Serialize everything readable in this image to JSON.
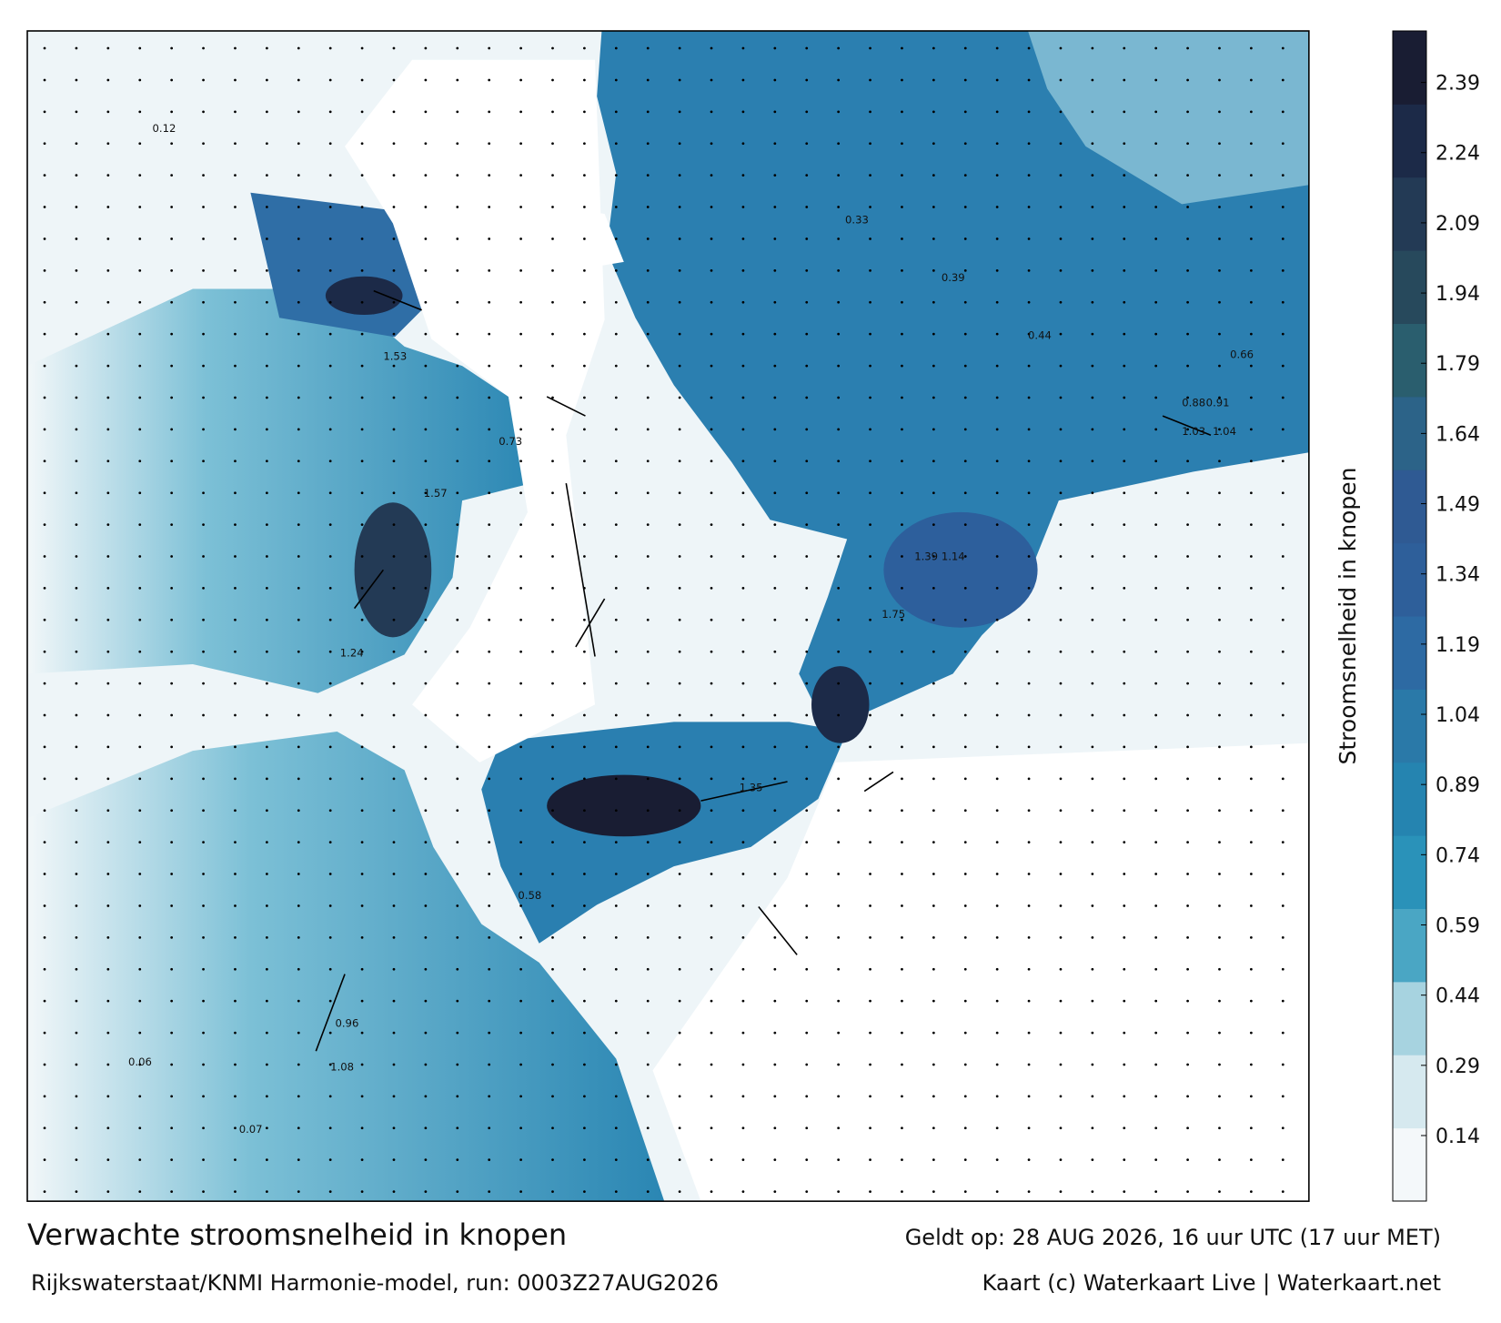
{
  "title": "Verwachte stroomsnelheid in knopen",
  "subtitle": "Rijkswaterstaat/KNMI Harmonie-model, run: 0003Z27AUG2026",
  "valid_time": "Geldt op: 28 AUG 2026, 16 uur UTC (17 uur MET)",
  "credit": "Kaart (c) Waterkaart Live | Waterkaart.net",
  "colorbar": {
    "label": "Stroomsnelheid in knopen",
    "range": [
      0,
      2.5
    ],
    "ticks": [
      0.14,
      0.29,
      0.44,
      0.59,
      0.74,
      0.89,
      1.04,
      1.19,
      1.34,
      1.49,
      1.64,
      1.79,
      1.94,
      2.09,
      2.24,
      2.39
    ],
    "colors": [
      "#f4f8fa",
      "#d6e9ef",
      "#a7d3e0",
      "#4aa6c4",
      "#2a92b9",
      "#2584b0",
      "#2a79a8",
      "#2d6aa3",
      "#2e5f9a",
      "#2f5a93",
      "#2c6388",
      "#2a5e6e",
      "#27495c",
      "#233a55",
      "#1c2a48",
      "#191d33"
    ]
  },
  "map_labels": [
    1.53,
    1.57,
    1.39,
    1.14,
    1.75,
    1.35,
    1.03,
    1.04,
    0.88,
    0.91,
    0.73,
    0.66,
    0.44,
    0.39,
    0.33,
    0.12,
    0.06,
    0.07,
    1.08,
    0.96,
    0.58,
    1.24
  ]
}
